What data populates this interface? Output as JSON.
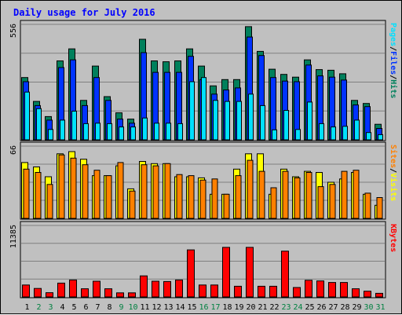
{
  "chart_data": {
    "type": "bar",
    "title": "Daily usage for July 2016",
    "categories": [
      "1",
      "2",
      "3",
      "4",
      "5",
      "6",
      "7",
      "8",
      "9",
      "10",
      "11",
      "12",
      "13",
      "14",
      "15",
      "16",
      "17",
      "18",
      "19",
      "20",
      "21",
      "22",
      "23",
      "24",
      "25",
      "26",
      "27",
      "28",
      "29",
      "30",
      "31"
    ],
    "weekend_days": [
      "2",
      "3",
      "9",
      "10",
      "16",
      "17",
      "23",
      "24",
      "30",
      "31"
    ],
    "panels": [
      {
        "id": "hits_files_pages",
        "ymax_label": "556",
        "ylim": [
          0,
          556
        ],
        "right_label_parts": [
          "Pages",
          "/",
          "Files",
          "/",
          "Hits"
        ],
        "series": [
          {
            "name": "Hits",
            "color": "#00805c",
            "values": [
              300,
              185,
              112,
              380,
              438,
              190,
              355,
              208,
              130,
              100,
              484,
              380,
              376,
              380,
              438,
              355,
              260,
              290,
              290,
              545,
              426,
              340,
              315,
              302,
              385,
              338,
              335,
              318,
              190,
              175,
              75
            ]
          },
          {
            "name": "Files",
            "color": "#0033ff",
            "values": [
              280,
              165,
              95,
              348,
              385,
              165,
              300,
              190,
              100,
              80,
              420,
              325,
              325,
              325,
              402,
              290,
              220,
              240,
              250,
              495,
              406,
              300,
              283,
              280,
              360,
              308,
              302,
              288,
              168,
              160,
              55
            ]
          },
          {
            "name": "Pages",
            "color": "#00e0ff",
            "values": [
              230,
              150,
              50,
              95,
              138,
              78,
              80,
              78,
              62,
              62,
              105,
              80,
              80,
              78,
              280,
              300,
              190,
              185,
              185,
              220,
              165,
              48,
              142,
              50,
              182,
              78,
              62,
              65,
              95,
              35,
              25
            ]
          }
        ]
      },
      {
        "id": "visits_sites",
        "ymax_label": "66",
        "ylim": [
          0,
          66
        ],
        "right_label_parts": [
          "Sites",
          "/",
          "Visits"
        ],
        "series": [
          {
            "name": "Visits",
            "color": "#ffff00",
            "values": [
              51,
              47,
              38,
              59,
              61,
              54,
              39,
              39,
              48,
              27,
              52,
              50,
              50,
              38,
              38,
              37,
              22,
              22,
              45,
              59,
              59,
              22,
              45,
              38,
              43,
              42,
              33,
              36,
              42,
              22,
              12
            ]
          },
          {
            "name": "Sites",
            "color": "#ff8000",
            "values": [
              45,
              42,
              31,
              58,
              55,
              49,
              44,
              39,
              51,
              25,
              49,
              48,
              50,
              40,
              39,
              35,
              36,
              22,
              39,
              53,
              43,
              28,
              43,
              37,
              42,
              29,
              31,
              43,
              44,
              23,
              19
            ]
          }
        ]
      },
      {
        "id": "kbytes",
        "ymax_label": "11385",
        "ylim": [
          0,
          11385
        ],
        "right_label_parts": [
          "KBytes"
        ],
        "series": [
          {
            "name": "KBytes",
            "color": "#ff0000",
            "values": [
              1900,
              1350,
              670,
              2200,
              2700,
              1300,
              2500,
              1300,
              650,
              650,
              3350,
              2500,
              2450,
              2700,
              7500,
              1900,
              1900,
              7900,
              1700,
              7900,
              1700,
              1700,
              7300,
              1500,
              2650,
              2550,
              2300,
              2300,
              1300,
              910,
              570
            ]
          }
        ]
      }
    ],
    "colors": {
      "background": "#c0c0c0",
      "title": "#0000ff",
      "weekday_label": "#000000",
      "weekend_label": "#008040",
      "grid": "#808080"
    }
  }
}
